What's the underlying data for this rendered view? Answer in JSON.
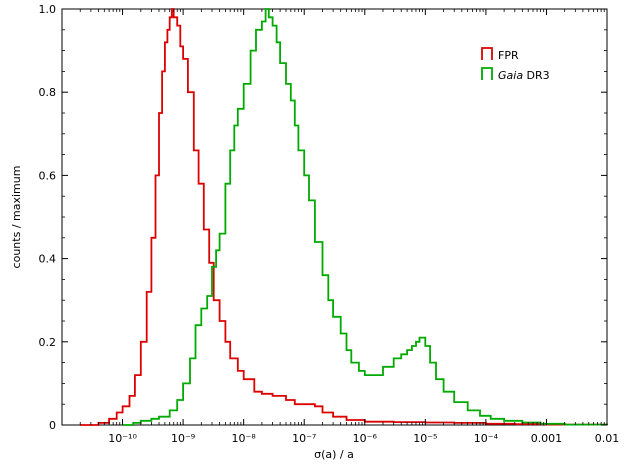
{
  "chart_data": {
    "type": "line",
    "step": true,
    "xlabel": "σ(a) / a",
    "ylabel": "counts / maximum",
    "x_scale": "log",
    "xlim": [
      1e-11,
      0.01
    ],
    "ylim": [
      0,
      1.0
    ],
    "grid": false,
    "legend_position": "top-right",
    "x_ticks": [
      {
        "value": 1e-10,
        "label": "10⁻¹⁰"
      },
      {
        "value": 1e-09,
        "label": "10⁻⁹"
      },
      {
        "value": 1e-08,
        "label": "10⁻⁸"
      },
      {
        "value": 1e-07,
        "label": "10⁻⁷"
      },
      {
        "value": 1e-06,
        "label": "10⁻⁶"
      },
      {
        "value": 1e-05,
        "label": "10⁻⁵"
      },
      {
        "value": 0.0001,
        "label": "10⁻⁴"
      },
      {
        "value": 0.001,
        "label": "0.001"
      },
      {
        "value": 0.01,
        "label": "0.01"
      }
    ],
    "y_ticks": [
      {
        "value": 0,
        "label": "0"
      },
      {
        "value": 0.2,
        "label": "0.2"
      },
      {
        "value": 0.4,
        "label": "0.4"
      },
      {
        "value": 0.6,
        "label": "0.6"
      },
      {
        "value": 0.8,
        "label": "0.8"
      },
      {
        "value": 1.0,
        "label": "1.0"
      }
    ],
    "series": [
      {
        "name": "FPR",
        "color": "#dd0000",
        "points": [
          [
            2e-11,
            0.0
          ],
          [
            4e-11,
            0.005
          ],
          [
            6e-11,
            0.015
          ],
          [
            8e-11,
            0.03
          ],
          [
            1e-10,
            0.045
          ],
          [
            1.3e-10,
            0.07
          ],
          [
            1.6e-10,
            0.12
          ],
          [
            2e-10,
            0.2
          ],
          [
            2.5e-10,
            0.32
          ],
          [
            3e-10,
            0.45
          ],
          [
            3.5e-10,
            0.6
          ],
          [
            4e-10,
            0.75
          ],
          [
            4.5e-10,
            0.85
          ],
          [
            5e-10,
            0.92
          ],
          [
            5.5e-10,
            0.95
          ],
          [
            6e-10,
            0.98
          ],
          [
            6.5e-10,
            1.0
          ],
          [
            7e-10,
            0.98
          ],
          [
            8e-10,
            0.96
          ],
          [
            9e-10,
            0.91
          ],
          [
            1e-09,
            0.88
          ],
          [
            1.2e-09,
            0.8
          ],
          [
            1.5e-09,
            0.66
          ],
          [
            1.8e-09,
            0.58
          ],
          [
            2.2e-09,
            0.47
          ],
          [
            2.7e-09,
            0.39
          ],
          [
            3.2e-09,
            0.3
          ],
          [
            3.6e-09,
            0.3
          ],
          [
            4e-09,
            0.25
          ],
          [
            5e-09,
            0.2
          ],
          [
            6e-09,
            0.16
          ],
          [
            8e-09,
            0.13
          ],
          [
            1e-08,
            0.11
          ],
          [
            1.5e-08,
            0.08
          ],
          [
            2e-08,
            0.075
          ],
          [
            3e-08,
            0.07
          ],
          [
            5e-08,
            0.06
          ],
          [
            7e-08,
            0.05
          ],
          [
            1e-07,
            0.05
          ],
          [
            1.5e-07,
            0.045
          ],
          [
            2e-07,
            0.03
          ],
          [
            3e-07,
            0.02
          ],
          [
            5e-07,
            0.012
          ],
          [
            1e-06,
            0.008
          ],
          [
            3e-06,
            0.007
          ],
          [
            1e-05,
            0.006
          ],
          [
            3e-05,
            0.005
          ],
          [
            0.0001,
            0.003
          ],
          [
            0.0003,
            0.002
          ],
          [
            0.001,
            0.001
          ],
          [
            0.01,
            0.0
          ]
        ]
      },
      {
        "name": "Gaia DR3",
        "name_italic": "Gaia",
        "name_rest": " DR3",
        "color": "#00aa00",
        "points": [
          [
            1e-10,
            0.0
          ],
          [
            1.5e-10,
            0.005
          ],
          [
            2e-10,
            0.01
          ],
          [
            3e-10,
            0.015
          ],
          [
            4e-10,
            0.02
          ],
          [
            6e-10,
            0.035
          ],
          [
            8e-10,
            0.06
          ],
          [
            1e-09,
            0.1
          ],
          [
            1.3e-09,
            0.16
          ],
          [
            1.6e-09,
            0.24
          ],
          [
            2e-09,
            0.28
          ],
          [
            2.5e-09,
            0.31
          ],
          [
            3e-09,
            0.38
          ],
          [
            3.5e-09,
            0.42
          ],
          [
            4e-09,
            0.46
          ],
          [
            5e-09,
            0.58
          ],
          [
            6e-09,
            0.66
          ],
          [
            7e-09,
            0.72
          ],
          [
            8e-09,
            0.76
          ],
          [
            1e-08,
            0.82
          ],
          [
            1.3e-08,
            0.9
          ],
          [
            1.6e-08,
            0.95
          ],
          [
            2e-08,
            0.97
          ],
          [
            2.3e-08,
            1.0
          ],
          [
            2.6e-08,
            0.98
          ],
          [
            3e-08,
            0.96
          ],
          [
            3.5e-08,
            0.92
          ],
          [
            4e-08,
            0.87
          ],
          [
            5e-08,
            0.82
          ],
          [
            6e-08,
            0.78
          ],
          [
            7e-08,
            0.72
          ],
          [
            8e-08,
            0.66
          ],
          [
            1e-07,
            0.6
          ],
          [
            1.2e-07,
            0.54
          ],
          [
            1.5e-07,
            0.44
          ],
          [
            2e-07,
            0.36
          ],
          [
            2.5e-07,
            0.3
          ],
          [
            3e-07,
            0.26
          ],
          [
            4e-07,
            0.22
          ],
          [
            5e-07,
            0.18
          ],
          [
            6e-07,
            0.15
          ],
          [
            8e-07,
            0.13
          ],
          [
            1e-06,
            0.12
          ],
          [
            1.5e-06,
            0.12
          ],
          [
            2e-06,
            0.14
          ],
          [
            3e-06,
            0.16
          ],
          [
            4e-06,
            0.17
          ],
          [
            5e-06,
            0.18
          ],
          [
            6e-06,
            0.19
          ],
          [
            7e-06,
            0.2
          ],
          [
            8e-06,
            0.21
          ],
          [
            1e-05,
            0.19
          ],
          [
            1.2e-05,
            0.15
          ],
          [
            1.5e-05,
            0.11
          ],
          [
            2e-05,
            0.08
          ],
          [
            3e-05,
            0.055
          ],
          [
            5e-05,
            0.035
          ],
          [
            8e-05,
            0.022
          ],
          [
            0.00012,
            0.015
          ],
          [
            0.0002,
            0.01
          ],
          [
            0.0004,
            0.006
          ],
          [
            0.0008,
            0.003
          ],
          [
            0.002,
            0.001
          ],
          [
            0.01,
            0.0
          ]
        ]
      }
    ]
  }
}
